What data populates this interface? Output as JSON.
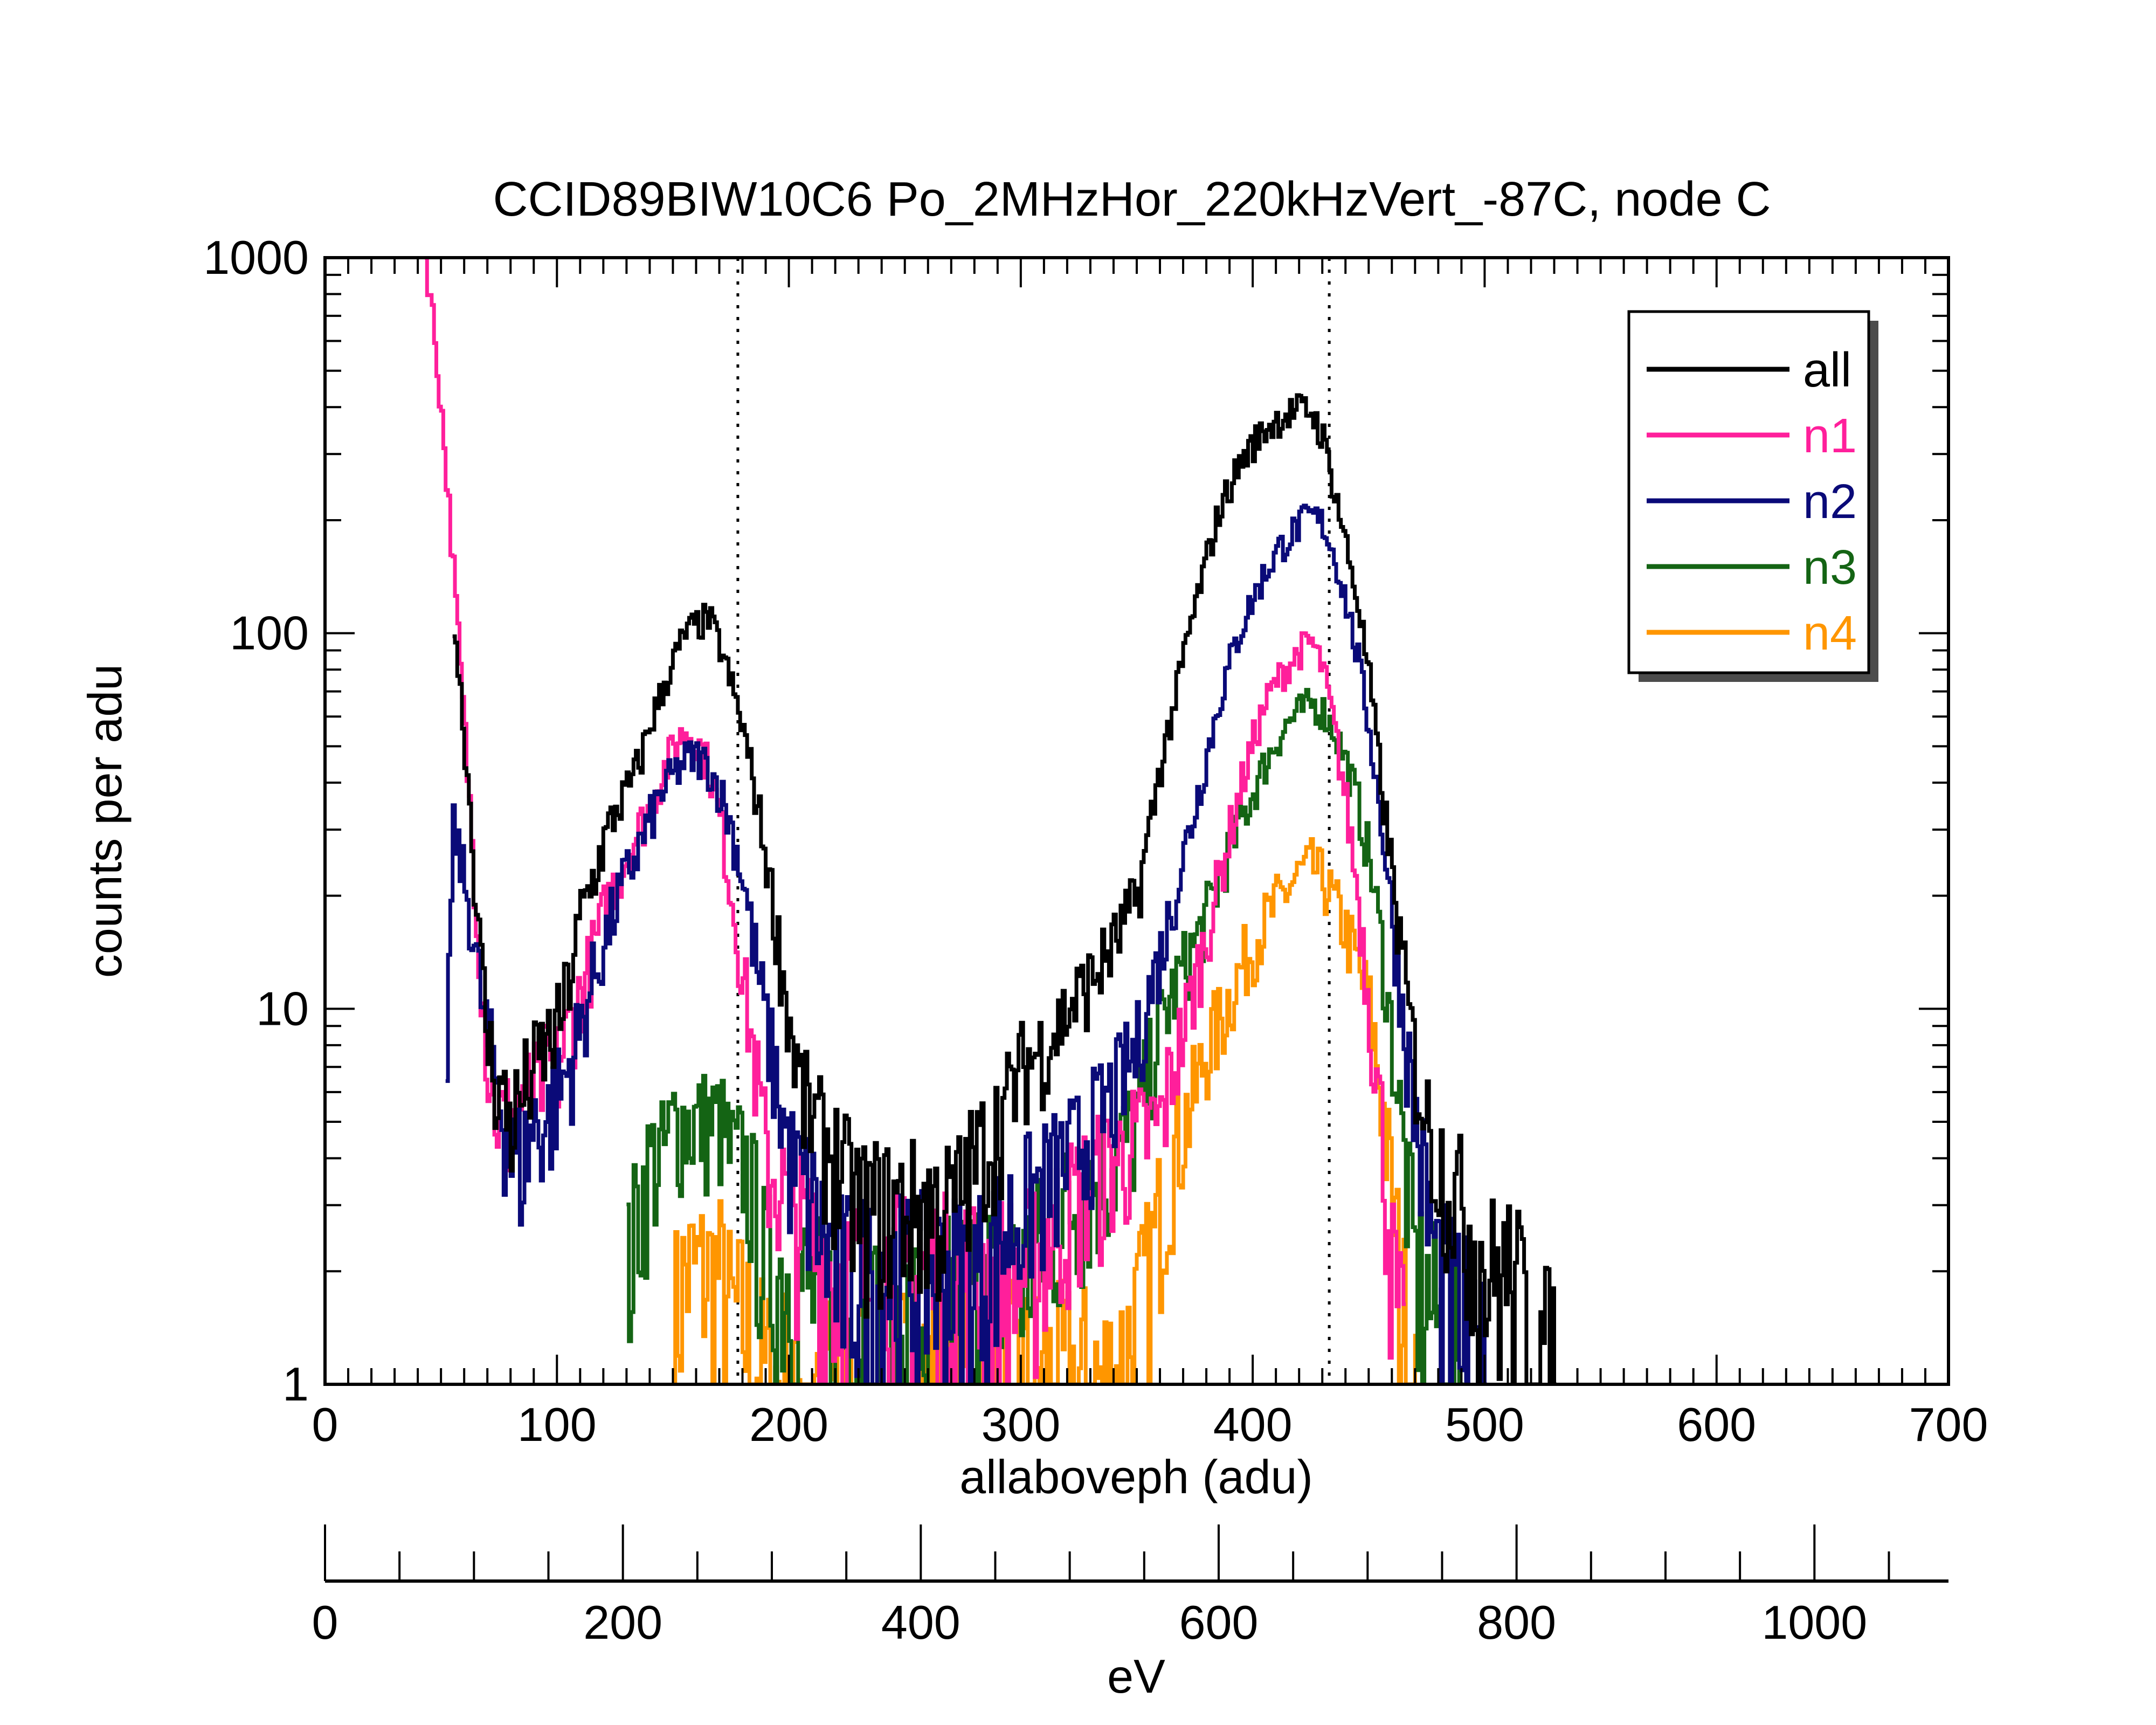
{
  "chart_data": {
    "type": "line",
    "step": true,
    "title": "CCID89BIW10C6 Po_2MHzHor_220kHzVert_-87C, node C",
    "xlabel": "allaboveph (adu)",
    "ylabel": "counts per adu",
    "xlim": [
      0,
      700
    ],
    "ylim": [
      1,
      1000
    ],
    "yscale": "log",
    "xticks": [
      "0",
      "100",
      "200",
      "300",
      "400",
      "500",
      "600",
      "700"
    ],
    "yticks": [
      "1",
      "10",
      "100",
      "1000"
    ],
    "secondary_axis": {
      "label": "eV",
      "range": [
        0,
        1090
      ],
      "ticks": [
        "0",
        "200",
        "400",
        "600",
        "800",
        "1000"
      ]
    },
    "vlines": [
      178,
      433
    ],
    "legend": {
      "position": "top-right",
      "entries": [
        "all",
        "n1",
        "n2",
        "n3",
        "n4"
      ]
    },
    "series": [
      {
        "name": "all",
        "color": "#000000",
        "points": [
          [
            55,
            110
          ],
          [
            58,
            70
          ],
          [
            62,
            35
          ],
          [
            66,
            15
          ],
          [
            70,
            8
          ],
          [
            75,
            6
          ],
          [
            80,
            5
          ],
          [
            85,
            6
          ],
          [
            90,
            7
          ],
          [
            95,
            8
          ],
          [
            100,
            9
          ],
          [
            105,
            12
          ],
          [
            110,
            18
          ],
          [
            115,
            22
          ],
          [
            120,
            28
          ],
          [
            125,
            34
          ],
          [
            130,
            38
          ],
          [
            135,
            45
          ],
          [
            140,
            58
          ],
          [
            145,
            70
          ],
          [
            150,
            85
          ],
          [
            155,
            100
          ],
          [
            160,
            105
          ],
          [
            165,
            110
          ],
          [
            170,
            92
          ],
          [
            175,
            72
          ],
          [
            180,
            55
          ],
          [
            185,
            38
          ],
          [
            190,
            25
          ],
          [
            195,
            15
          ],
          [
            200,
            9
          ],
          [
            205,
            6
          ],
          [
            210,
            5
          ],
          [
            220,
            4
          ],
          [
            230,
            3
          ],
          [
            240,
            3
          ],
          [
            250,
            3
          ],
          [
            260,
            3
          ],
          [
            270,
            3
          ],
          [
            280,
            4
          ],
          [
            290,
            5
          ],
          [
            300,
            7
          ],
          [
            310,
            8
          ],
          [
            320,
            10
          ],
          [
            330,
            12
          ],
          [
            340,
            15
          ],
          [
            350,
            20
          ],
          [
            355,
            30
          ],
          [
            360,
            45
          ],
          [
            365,
            62
          ],
          [
            370,
            88
          ],
          [
            375,
            120
          ],
          [
            380,
            160
          ],
          [
            385,
            210
          ],
          [
            390,
            250
          ],
          [
            395,
            290
          ],
          [
            400,
            320
          ],
          [
            405,
            350
          ],
          [
            410,
            370
          ],
          [
            415,
            385
          ],
          [
            420,
            395
          ],
          [
            425,
            390
          ],
          [
            430,
            330
          ],
          [
            435,
            240
          ],
          [
            440,
            170
          ],
          [
            445,
            120
          ],
          [
            450,
            75
          ],
          [
            455,
            40
          ],
          [
            460,
            22
          ],
          [
            465,
            12
          ],
          [
            470,
            7
          ],
          [
            475,
            5
          ],
          [
            480,
            4
          ],
          [
            490,
            3
          ],
          [
            500,
            2
          ],
          [
            510,
            2
          ],
          [
            520,
            1.5
          ],
          [
            530,
            1
          ]
        ]
      },
      {
        "name": "n1",
        "color": "#ff1f9b",
        "points": [
          [
            43,
            1000
          ],
          [
            46,
            700
          ],
          [
            50,
            380
          ],
          [
            54,
            180
          ],
          [
            58,
            80
          ],
          [
            62,
            35
          ],
          [
            66,
            15
          ],
          [
            70,
            7
          ],
          [
            75,
            5
          ],
          [
            80,
            5
          ],
          [
            85,
            6
          ],
          [
            90,
            6
          ],
          [
            95,
            7
          ],
          [
            100,
            7
          ],
          [
            105,
            9
          ],
          [
            110,
            11
          ],
          [
            115,
            14
          ],
          [
            120,
            18
          ],
          [
            125,
            22
          ],
          [
            130,
            26
          ],
          [
            135,
            30
          ],
          [
            140,
            35
          ],
          [
            145,
            42
          ],
          [
            150,
            50
          ],
          [
            155,
            55
          ],
          [
            160,
            52
          ],
          [
            165,
            44
          ],
          [
            170,
            32
          ],
          [
            175,
            20
          ],
          [
            180,
            12
          ],
          [
            185,
            7
          ],
          [
            190,
            4
          ],
          [
            200,
            3
          ],
          [
            220,
            2
          ],
          [
            240,
            2
          ],
          [
            260,
            2
          ],
          [
            280,
            2
          ],
          [
            300,
            2
          ],
          [
            320,
            3
          ],
          [
            340,
            4
          ],
          [
            360,
            5
          ],
          [
            365,
            7
          ],
          [
            370,
            9
          ],
          [
            375,
            12
          ],
          [
            380,
            16
          ],
          [
            385,
            22
          ],
          [
            390,
            30
          ],
          [
            395,
            40
          ],
          [
            400,
            52
          ],
          [
            405,
            65
          ],
          [
            410,
            75
          ],
          [
            415,
            82
          ],
          [
            420,
            90
          ],
          [
            425,
            95
          ],
          [
            430,
            80
          ],
          [
            435,
            55
          ],
          [
            440,
            35
          ],
          [
            445,
            20
          ],
          [
            450,
            10
          ],
          [
            455,
            5
          ],
          [
            460,
            2
          ],
          [
            465,
            1
          ]
        ]
      },
      {
        "name": "n2",
        "color": "#0a0a78",
        "points": [
          [
            52,
            8
          ],
          [
            55,
            30
          ],
          [
            58,
            25
          ],
          [
            62,
            18
          ],
          [
            66,
            12
          ],
          [
            70,
            8
          ],
          [
            75,
            6
          ],
          [
            80,
            4
          ],
          [
            85,
            4
          ],
          [
            90,
            5
          ],
          [
            95,
            5
          ],
          [
            100,
            6
          ],
          [
            105,
            7
          ],
          [
            110,
            9
          ],
          [
            115,
            12
          ],
          [
            120,
            15
          ],
          [
            125,
            19
          ],
          [
            130,
            23
          ],
          [
            135,
            27
          ],
          [
            140,
            32
          ],
          [
            145,
            38
          ],
          [
            150,
            42
          ],
          [
            155,
            46
          ],
          [
            160,
            47
          ],
          [
            165,
            44
          ],
          [
            170,
            38
          ],
          [
            175,
            30
          ],
          [
            180,
            22
          ],
          [
            185,
            14
          ],
          [
            190,
            9
          ],
          [
            195,
            6
          ],
          [
            200,
            4
          ],
          [
            210,
            3
          ],
          [
            220,
            2
          ],
          [
            240,
            2
          ],
          [
            260,
            2
          ],
          [
            280,
            2
          ],
          [
            300,
            3
          ],
          [
            320,
            4
          ],
          [
            340,
            6
          ],
          [
            350,
            8
          ],
          [
            355,
            11
          ],
          [
            360,
            14
          ],
          [
            365,
            19
          ],
          [
            370,
            26
          ],
          [
            375,
            35
          ],
          [
            380,
            48
          ],
          [
            385,
            65
          ],
          [
            390,
            85
          ],
          [
            395,
            105
          ],
          [
            400,
            125
          ],
          [
            405,
            145
          ],
          [
            410,
            165
          ],
          [
            415,
            180
          ],
          [
            420,
            195
          ],
          [
            425,
            205
          ],
          [
            430,
            195
          ],
          [
            435,
            160
          ],
          [
            440,
            120
          ],
          [
            445,
            85
          ],
          [
            450,
            55
          ],
          [
            455,
            32
          ],
          [
            460,
            17
          ],
          [
            465,
            9
          ],
          [
            470,
            5
          ],
          [
            475,
            3
          ],
          [
            480,
            2
          ],
          [
            490,
            1.5
          ],
          [
            500,
            1
          ]
        ]
      },
      {
        "name": "n3",
        "color": "#146414",
        "points": [
          [
            130,
            2
          ],
          [
            135,
            3
          ],
          [
            140,
            4
          ],
          [
            145,
            4
          ],
          [
            150,
            5
          ],
          [
            155,
            5
          ],
          [
            160,
            5
          ],
          [
            165,
            5
          ],
          [
            170,
            5
          ],
          [
            175,
            4
          ],
          [
            180,
            4
          ],
          [
            185,
            3
          ],
          [
            190,
            2
          ],
          [
            200,
            2
          ],
          [
            220,
            1.5
          ],
          [
            240,
            1.5
          ],
          [
            260,
            1.5
          ],
          [
            280,
            2
          ],
          [
            300,
            2
          ],
          [
            320,
            3
          ],
          [
            340,
            4
          ],
          [
            350,
            5
          ],
          [
            355,
            7
          ],
          [
            360,
            9
          ],
          [
            365,
            11
          ],
          [
            370,
            13
          ],
          [
            375,
            15
          ],
          [
            380,
            18
          ],
          [
            385,
            22
          ],
          [
            390,
            27
          ],
          [
            395,
            32
          ],
          [
            400,
            38
          ],
          [
            405,
            45
          ],
          [
            410,
            52
          ],
          [
            415,
            58
          ],
          [
            420,
            62
          ],
          [
            425,
            65
          ],
          [
            430,
            62
          ],
          [
            435,
            55
          ],
          [
            440,
            45
          ],
          [
            445,
            35
          ],
          [
            450,
            25
          ],
          [
            455,
            15
          ],
          [
            460,
            8
          ],
          [
            465,
            4
          ],
          [
            470,
            2
          ],
          [
            480,
            1.5
          ],
          [
            490,
            1
          ]
        ]
      },
      {
        "name": "n4",
        "color": "#ff9600",
        "points": [
          [
            150,
            1.5
          ],
          [
            155,
            2
          ],
          [
            160,
            2
          ],
          [
            165,
            2
          ],
          [
            170,
            2
          ],
          [
            175,
            1.5
          ],
          [
            180,
            1.5
          ],
          [
            190,
            1
          ],
          [
            340,
            1
          ],
          [
            350,
            1.5
          ],
          [
            355,
            2
          ],
          [
            360,
            3
          ],
          [
            365,
            4
          ],
          [
            370,
            5
          ],
          [
            375,
            6
          ],
          [
            380,
            8
          ],
          [
            385,
            9
          ],
          [
            390,
            11
          ],
          [
            395,
            13
          ],
          [
            400,
            15
          ],
          [
            405,
            17
          ],
          [
            410,
            19
          ],
          [
            415,
            21
          ],
          [
            420,
            23
          ],
          [
            425,
            24
          ],
          [
            430,
            22
          ],
          [
            435,
            19
          ],
          [
            440,
            16
          ],
          [
            445,
            13
          ],
          [
            450,
            10
          ],
          [
            455,
            6
          ],
          [
            460,
            3
          ],
          [
            465,
            1.5
          ],
          [
            470,
            1
          ]
        ]
      }
    ]
  }
}
